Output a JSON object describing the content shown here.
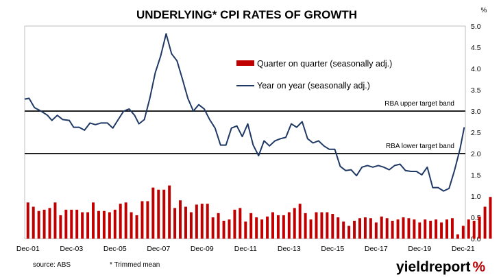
{
  "chart_data": {
    "type": "bar+line",
    "title": "UNDERLYING* CPI RATES OF GROWTH",
    "ylabel": "%",
    "ylim": [
      0,
      5
    ],
    "yticks": [
      "0.0",
      "0.5",
      "1.0",
      "1.5",
      "2.0",
      "2.5",
      "3.0",
      "3.5",
      "4.0",
      "4.5",
      "5.0"
    ],
    "xlim": [
      2001.75,
      2022.0
    ],
    "xtick_labels": [
      {
        "x": 2001.9,
        "label": "Dec-01"
      },
      {
        "x": 2003.9,
        "label": "Dec-03"
      },
      {
        "x": 2005.9,
        "label": "Dec-05"
      },
      {
        "x": 2007.9,
        "label": "Dec-07"
      },
      {
        "x": 2009.9,
        "label": "Dec-09"
      },
      {
        "x": 2011.9,
        "label": "Dec-11"
      },
      {
        "x": 2013.9,
        "label": "Dec-13"
      },
      {
        "x": 2015.9,
        "label": "Dec-15"
      },
      {
        "x": 2017.9,
        "label": "Dec-17"
      },
      {
        "x": 2019.9,
        "label": "Dec-19"
      },
      {
        "x": 2021.9,
        "label": "Dec-21"
      }
    ],
    "reference_lines": [
      {
        "y": 3.0,
        "label": "RBA upper target band"
      },
      {
        "y": 2.0,
        "label": "RBA lower target band"
      }
    ],
    "series": [
      {
        "name": "Quarter on quarter (seasonally adj.)",
        "type": "bar",
        "color": "#c00000",
        "x_start": 2001.9,
        "step": 0.25,
        "values": [
          0.85,
          0.75,
          0.65,
          0.68,
          0.72,
          0.85,
          0.55,
          0.68,
          0.68,
          0.68,
          0.62,
          0.62,
          0.85,
          0.65,
          0.65,
          0.62,
          0.68,
          0.82,
          0.85,
          0.62,
          0.55,
          0.88,
          0.88,
          1.2,
          1.15,
          1.15,
          1.25,
          0.72,
          0.9,
          0.75,
          0.62,
          0.8,
          0.82,
          0.82,
          0.5,
          0.6,
          0.42,
          0.45,
          0.68,
          0.72,
          0.4,
          0.6,
          0.5,
          0.45,
          0.52,
          0.62,
          0.55,
          0.55,
          0.62,
          0.72,
          0.82,
          0.6,
          0.45,
          0.62,
          0.62,
          0.62,
          0.58,
          0.5,
          0.4,
          0.3,
          0.42,
          0.48,
          0.5,
          0.48,
          0.38,
          0.52,
          0.48,
          0.42,
          0.45,
          0.5,
          0.48,
          0.45,
          0.38,
          0.45,
          0.42,
          0.45,
          0.38,
          0.45,
          0.48,
          0.1,
          0.3,
          0.45,
          0.42,
          0.52,
          0.75,
          0.98
        ]
      },
      {
        "name": "Year on year (seasonally adj.)",
        "type": "line",
        "color": "#1f3864",
        "points": [
          [
            2001.75,
            3.28
          ],
          [
            2001.95,
            3.3
          ],
          [
            2002.2,
            3.08
          ],
          [
            2002.5,
            3.0
          ],
          [
            2002.8,
            2.9
          ],
          [
            2003.0,
            2.78
          ],
          [
            2003.25,
            2.9
          ],
          [
            2003.5,
            2.8
          ],
          [
            2003.8,
            2.78
          ],
          [
            2004.0,
            2.62
          ],
          [
            2004.25,
            2.62
          ],
          [
            2004.5,
            2.55
          ],
          [
            2004.75,
            2.72
          ],
          [
            2005.0,
            2.68
          ],
          [
            2005.25,
            2.72
          ],
          [
            2005.55,
            2.72
          ],
          [
            2005.8,
            2.6
          ],
          [
            2006.05,
            2.8
          ],
          [
            2006.3,
            3.0
          ],
          [
            2006.55,
            3.05
          ],
          [
            2006.8,
            2.9
          ],
          [
            2007.0,
            2.7
          ],
          [
            2007.25,
            2.8
          ],
          [
            2007.5,
            3.3
          ],
          [
            2007.75,
            3.9
          ],
          [
            2008.0,
            4.3
          ],
          [
            2008.25,
            4.82
          ],
          [
            2008.5,
            4.35
          ],
          [
            2008.75,
            4.18
          ],
          [
            2009.0,
            3.75
          ],
          [
            2009.25,
            3.3
          ],
          [
            2009.5,
            3.0
          ],
          [
            2009.75,
            3.15
          ],
          [
            2010.0,
            3.05
          ],
          [
            2010.25,
            2.8
          ],
          [
            2010.5,
            2.6
          ],
          [
            2010.75,
            2.2
          ],
          [
            2011.0,
            2.2
          ],
          [
            2011.25,
            2.6
          ],
          [
            2011.5,
            2.65
          ],
          [
            2011.75,
            2.4
          ],
          [
            2012.0,
            2.7
          ],
          [
            2012.25,
            2.2
          ],
          [
            2012.5,
            1.95
          ],
          [
            2012.75,
            2.3
          ],
          [
            2013.0,
            2.18
          ],
          [
            2013.25,
            2.3
          ],
          [
            2013.5,
            2.35
          ],
          [
            2013.75,
            2.38
          ],
          [
            2014.0,
            2.7
          ],
          [
            2014.25,
            2.62
          ],
          [
            2014.5,
            2.75
          ],
          [
            2014.75,
            2.35
          ],
          [
            2015.0,
            2.25
          ],
          [
            2015.25,
            2.3
          ],
          [
            2015.5,
            2.18
          ],
          [
            2015.75,
            2.1
          ],
          [
            2016.0,
            2.1
          ],
          [
            2016.25,
            1.7
          ],
          [
            2016.5,
            1.6
          ],
          [
            2016.75,
            1.62
          ],
          [
            2017.0,
            1.48
          ],
          [
            2017.25,
            1.68
          ],
          [
            2017.5,
            1.72
          ],
          [
            2017.75,
            1.68
          ],
          [
            2018.0,
            1.72
          ],
          [
            2018.25,
            1.68
          ],
          [
            2018.5,
            1.62
          ],
          [
            2018.75,
            1.72
          ],
          [
            2019.0,
            1.75
          ],
          [
            2019.25,
            1.6
          ],
          [
            2019.5,
            1.58
          ],
          [
            2019.75,
            1.58
          ],
          [
            2020.0,
            1.5
          ],
          [
            2020.25,
            1.68
          ],
          [
            2020.5,
            1.2
          ],
          [
            2020.75,
            1.2
          ],
          [
            2021.0,
            1.12
          ],
          [
            2021.25,
            1.18
          ],
          [
            2021.5,
            1.6
          ],
          [
            2021.75,
            2.1
          ],
          [
            2021.95,
            2.62
          ]
        ]
      }
    ],
    "legend_placement": "top-center",
    "grid": false
  },
  "footer": {
    "source": "source: ABS",
    "note": "*  Trimmed mean"
  },
  "logo": {
    "text_main": "yield",
    "text_accent": "report",
    "text_symbol": "%",
    "color_main": "#000000",
    "color_accent": "#000000",
    "color_symbol": "#c00000"
  }
}
